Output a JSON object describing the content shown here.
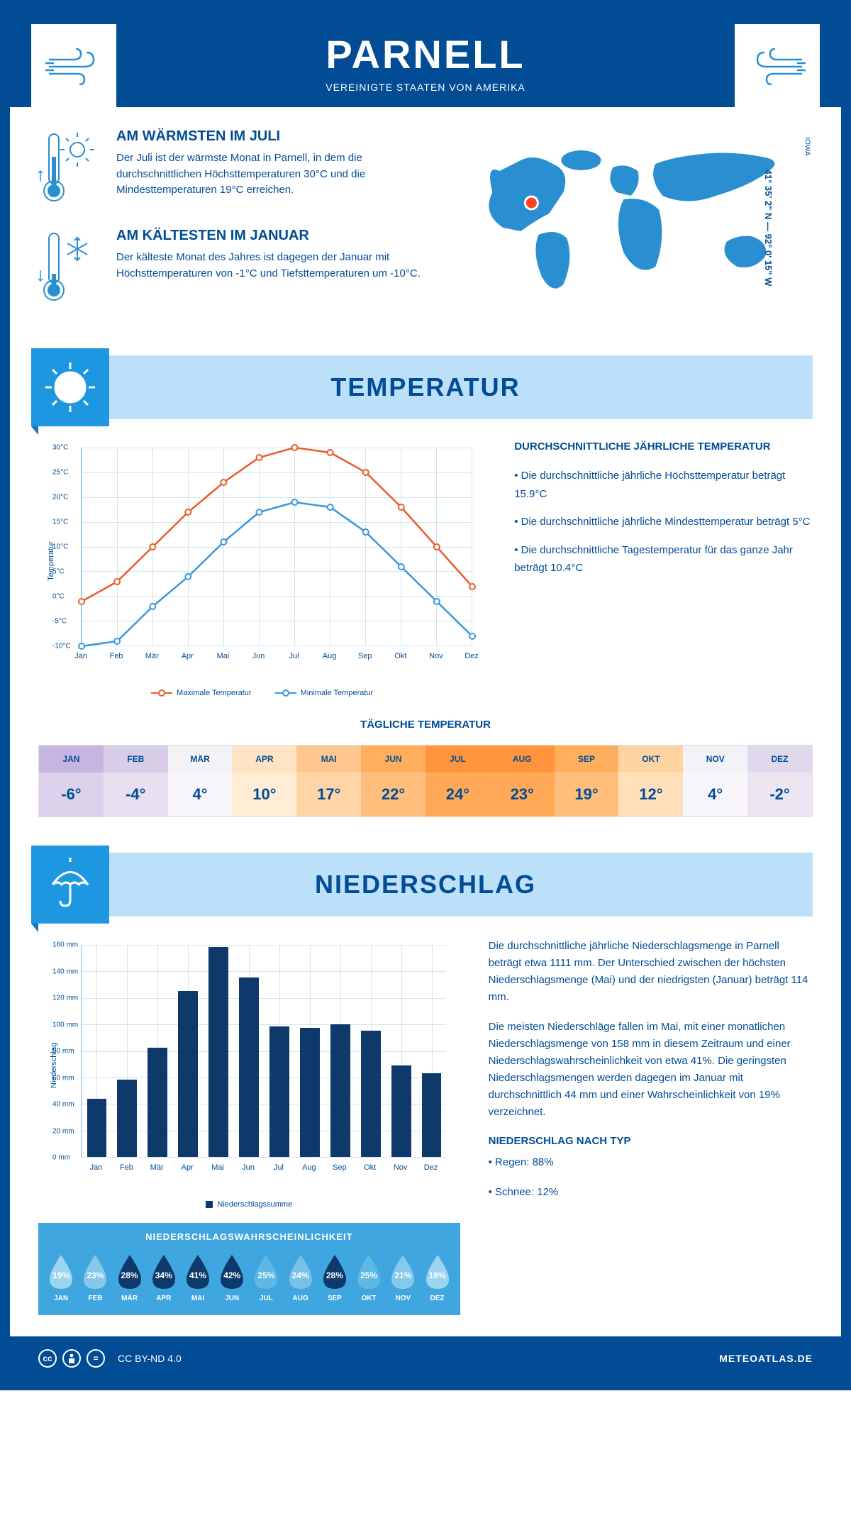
{
  "header": {
    "title": "PARNELL",
    "subtitle": "VEREINIGTE STAATEN VON AMERIKA"
  },
  "intro": {
    "warm": {
      "heading": "AM WÄRMSTEN IM JULI",
      "text": "Der Juli ist der wärmste Monat in Parnell, in dem die durchschnittlichen Höchsttemperaturen 30°C und die Mindesttemperaturen 19°C erreichen."
    },
    "cold": {
      "heading": "AM KÄLTESTEN IM JANUAR",
      "text": "Der kälteste Monat des Jahres ist dagegen der Januar mit Höchsttemperaturen von -1°C und Tiefsttemperaturen um -10°C."
    },
    "state": "IOWA",
    "coords": "41° 35' 2\" N — 92° 0' 15\" W"
  },
  "temperature": {
    "banner": "TEMPERATUR",
    "chart": {
      "y_label": "Temperatur",
      "y_ticks": [
        "-10°C",
        "-5°C",
        "0°C",
        "5°C",
        "10°C",
        "15°C",
        "20°C",
        "25°C",
        "30°C"
      ],
      "y_min": -10,
      "y_max": 30,
      "months": [
        "Jan",
        "Feb",
        "Mär",
        "Apr",
        "Mai",
        "Jun",
        "Jul",
        "Aug",
        "Sep",
        "Okt",
        "Nov",
        "Dez"
      ],
      "max_series": [
        -1,
        3,
        10,
        17,
        23,
        28,
        30,
        29,
        25,
        18,
        10,
        2
      ],
      "min_series": [
        -10,
        -9,
        -2,
        4,
        11,
        17,
        19,
        18,
        13,
        6,
        -1,
        -8
      ],
      "max_color": "#e85c2a",
      "min_color": "#3b97d8",
      "legend_max": "Maximale Temperatur",
      "legend_min": "Minimale Temperatur",
      "grid_color": "#d0e4f2"
    },
    "desc": {
      "heading": "DURCHSCHNITTLICHE JÄHRLICHE TEMPERATUR",
      "b1": "• Die durchschnittliche jährliche Höchsttemperatur beträgt 15.9°C",
      "b2": "• Die durchschnittliche jährliche Mindesttemperatur beträgt 5°C",
      "b3": "• Die durchschnittliche Tagestemperatur für das ganze Jahr beträgt 10.4°C"
    },
    "daily": {
      "heading": "TÄGLICHE TEMPERATUR",
      "months": [
        "JAN",
        "FEB",
        "MÄR",
        "APR",
        "MAI",
        "JUN",
        "JUL",
        "AUG",
        "SEP",
        "OKT",
        "NOV",
        "DEZ"
      ],
      "values": [
        "-6°",
        "-4°",
        "4°",
        "10°",
        "17°",
        "22°",
        "24°",
        "23°",
        "19°",
        "12°",
        "4°",
        "-2°"
      ],
      "head_colors": [
        "#c5b5e0",
        "#d8cee8",
        "#f2f2f7",
        "#ffe3c4",
        "#ffc78f",
        "#ffae5e",
        "#ff943d",
        "#ff943d",
        "#ffae5e",
        "#ffd4a3",
        "#f2f2f7",
        "#e0d8ec"
      ],
      "val_colors": [
        "#dcd2ec",
        "#e8e0f0",
        "#f8f6fa",
        "#ffecd5",
        "#ffd5a8",
        "#ffbe7c",
        "#ffa858",
        "#ffa858",
        "#ffbe7c",
        "#ffe0ba",
        "#f8f6fa",
        "#ece5f2"
      ],
      "text_color": "#014c95"
    }
  },
  "precipitation": {
    "banner": "NIEDERSCHLAG",
    "chart": {
      "y_label": "Niederschlag",
      "y_ticks": [
        "0 mm",
        "20 mm",
        "40 mm",
        "60 mm",
        "80 mm",
        "100 mm",
        "120 mm",
        "140 mm",
        "160 mm"
      ],
      "y_max": 160,
      "months": [
        "Jan",
        "Feb",
        "Mär",
        "Apr",
        "Mai",
        "Jun",
        "Jul",
        "Aug",
        "Sep",
        "Okt",
        "Nov",
        "Dez"
      ],
      "values": [
        44,
        58,
        82,
        125,
        158,
        135,
        98,
        97,
        100,
        95,
        69,
        63
      ],
      "bar_color": "#0d3a6b",
      "legend": "Niederschlagssumme"
    },
    "prob": {
      "heading": "NIEDERSCHLAGSWAHRSCHEINLICHKEIT",
      "months": [
        "JAN",
        "FEB",
        "MÄR",
        "APR",
        "MAI",
        "JUN",
        "JUL",
        "AUG",
        "SEP",
        "OKT",
        "NOV",
        "DEZ"
      ],
      "values": [
        "19%",
        "23%",
        "28%",
        "34%",
        "41%",
        "42%",
        "25%",
        "24%",
        "28%",
        "25%",
        "21%",
        "18%"
      ],
      "colors": [
        "#9dd4f0",
        "#86c8ea",
        "#0d3a6b",
        "#0d3a6b",
        "#0d3a6b",
        "#0d3a6b",
        "#5fb8e4",
        "#78c2e8",
        "#0d3a6b",
        "#5fb8e4",
        "#86c8ea",
        "#9dd4f0"
      ]
    },
    "desc": {
      "p1": "Die durchschnittliche jährliche Niederschlagsmenge in Parnell beträgt etwa 1111 mm. Der Unterschied zwischen der höchsten Niederschlagsmenge (Mai) und der niedrigsten (Januar) beträgt 114 mm.",
      "p2": "Die meisten Niederschläge fallen im Mai, mit einer monatlichen Niederschlagsmenge von 158 mm in diesem Zeitraum und einer Niederschlagswahrscheinlichkeit von etwa 41%. Die geringsten Niederschlagsmengen werden dagegen im Januar mit durchschnittlich 44 mm und einer Wahrscheinlichkeit von 19% verzeichnet.",
      "type_heading": "NIEDERSCHLAG NACH TYP",
      "rain": "• Regen: 88%",
      "snow": "• Schnee: 12%"
    }
  },
  "footer": {
    "license": "CC BY-ND 4.0",
    "site": "METEOATLAS.DE"
  },
  "colors": {
    "primary": "#014c95",
    "banner_bg": "#bce0f9",
    "banner_icon": "#1c97e0"
  }
}
